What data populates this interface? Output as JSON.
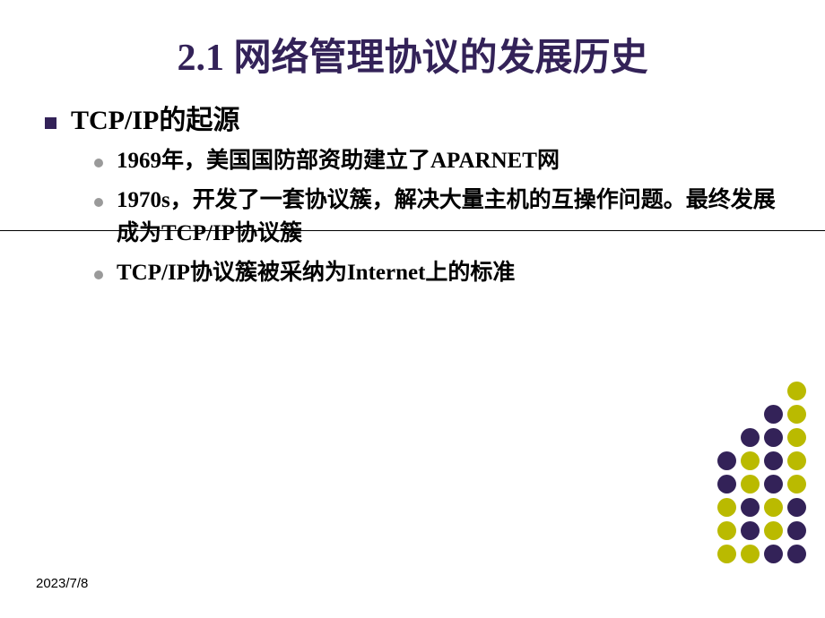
{
  "title": "2.1 网络管理协议的发展历史",
  "title_color": "#332258",
  "section": {
    "heading": "TCP/IP的起源",
    "items": [
      "1969年，美国国防部资助建立了APARNET网",
      "1970s，开发了一套协议簇，解决大量主机的互操作问题。最终发展成为TCP/IP协议簇",
      "TCP/IP协议簇被采纳为Internet上的标准"
    ]
  },
  "footer_date": "2023/7/8",
  "dots": {
    "colors": [
      "#baba00",
      "#332258"
    ],
    "pattern": [
      [
        null,
        null,
        null,
        0
      ],
      [
        null,
        null,
        1,
        0
      ],
      [
        null,
        1,
        1,
        0
      ],
      [
        1,
        0,
        1,
        0
      ],
      [
        1,
        0,
        1,
        0
      ],
      [
        0,
        1,
        0,
        1
      ],
      [
        0,
        1,
        0,
        1
      ],
      [
        0,
        0,
        1,
        1
      ]
    ]
  }
}
